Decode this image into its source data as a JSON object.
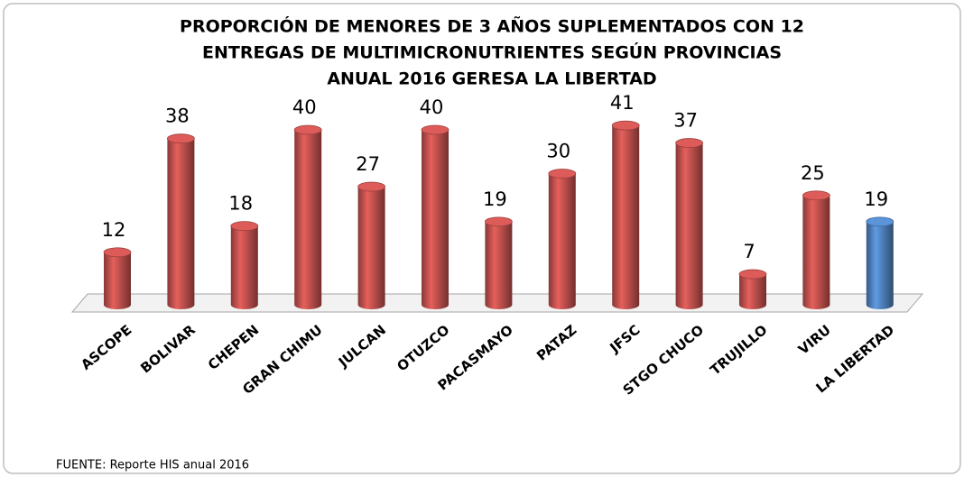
{
  "chart_data": {
    "type": "bar",
    "title": [
      "PROPORCIÓN DE MENORES DE 3 AÑOS SUPLEMENTADOS CON 12",
      "ENTREGAS DE MULTIMICRONUTRIENTES SEGÚN PROVINCIAS",
      "ANUAL  2016 GERESA LA LIBERTAD"
    ],
    "categories": [
      "ASCOPE",
      "BOLIVAR",
      "CHEPEN",
      "GRAN CHIMU",
      "JULCAN",
      "OTUZCO",
      "PACASMAYO",
      "PATAZ",
      "JFSC",
      "STGO CHUCO",
      "TRUJILLO",
      "VIRU",
      "LA LIBERTAD"
    ],
    "values": [
      12,
      38,
      18,
      40,
      27,
      40,
      19,
      30,
      41,
      37,
      7,
      25,
      19
    ],
    "colors": [
      "#c0504d",
      "#c0504d",
      "#c0504d",
      "#c0504d",
      "#c0504d",
      "#c0504d",
      "#c0504d",
      "#c0504d",
      "#c0504d",
      "#c0504d",
      "#c0504d",
      "#c0504d",
      "#4f81bd"
    ],
    "source": "FUENTE: Reporte HIS anual 2016"
  }
}
